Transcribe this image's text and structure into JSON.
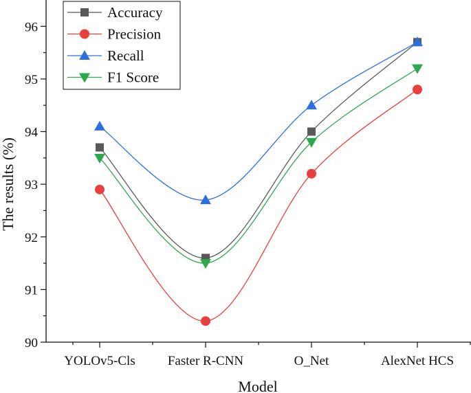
{
  "chart_data": {
    "type": "line",
    "title": "",
    "xlabel": "Model",
    "ylabel": "The results (%)",
    "categories": [
      "YOLOv5-Cls",
      "Faster R-CNN",
      "O_Net",
      "AlexNet HCS"
    ],
    "ylim": [
      90,
      96.5
    ],
    "yticks": [
      90,
      91,
      92,
      93,
      94,
      95,
      96
    ],
    "grid": false,
    "legend_position": "top-left",
    "series": [
      {
        "name": "Accuracy",
        "values": [
          93.7,
          91.6,
          94.0,
          95.7
        ],
        "color": "#595959",
        "marker": "square"
      },
      {
        "name": "Precision",
        "values": [
          92.9,
          90.4,
          93.2,
          94.8
        ],
        "color": "#e8403c",
        "marker": "circle"
      },
      {
        "name": "Recall",
        "values": [
          94.1,
          92.7,
          94.5,
          95.7
        ],
        "color": "#2e6fdc",
        "marker": "triangle-up"
      },
      {
        "name": "F1 Score",
        "values": [
          93.5,
          91.5,
          93.8,
          95.2
        ],
        "color": "#2ea84f",
        "marker": "triangle-down"
      }
    ]
  }
}
